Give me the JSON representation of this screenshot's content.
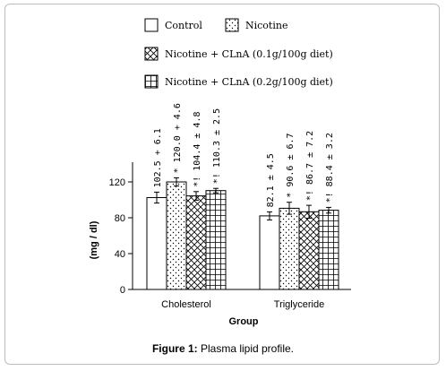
{
  "chart_data": {
    "type": "bar",
    "xlabel": "Group",
    "ylabel": "(mg / dl)",
    "ylim": [
      0,
      140
    ],
    "yticks": [
      0,
      40,
      80,
      120
    ],
    "grid": false,
    "legend_position": "top",
    "categories": [
      "Cholesterol",
      "Triglyceride"
    ],
    "series": [
      {
        "name": "Control",
        "pattern": "blank",
        "values": [
          102.5,
          82.1
        ],
        "errors": [
          6.1,
          4.5
        ],
        "labels": [
          "102.5 + 6.1",
          "82.1 ± 4.5"
        ]
      },
      {
        "name": "Nicotine",
        "pattern": "dots",
        "values": [
          120.0,
          90.6
        ],
        "errors": [
          4.6,
          6.7
        ],
        "labels": [
          "* 120.0 + 4.6",
          "* 90.6 ± 6.7"
        ]
      },
      {
        "name": "Nicotine + CLnA (0.1g/100g diet)",
        "pattern": "crosshatch",
        "values": [
          104.4,
          86.7
        ],
        "errors": [
          4.8,
          7.2
        ],
        "labels": [
          "*! 104.4 ± 4.8",
          "*! 86.7 ± 7.2"
        ]
      },
      {
        "name": "Nicotine + CLnA (0.2g/100g diet)",
        "pattern": "grid",
        "values": [
          110.3,
          88.4
        ],
        "errors": [
          2.5,
          3.2
        ],
        "labels": [
          "*! 110.3 ± 2.5",
          "*! 88.4 ± 3.2"
        ]
      }
    ]
  },
  "caption": {
    "label": "Figure 1:",
    "text": " Plasma lipid profile."
  }
}
